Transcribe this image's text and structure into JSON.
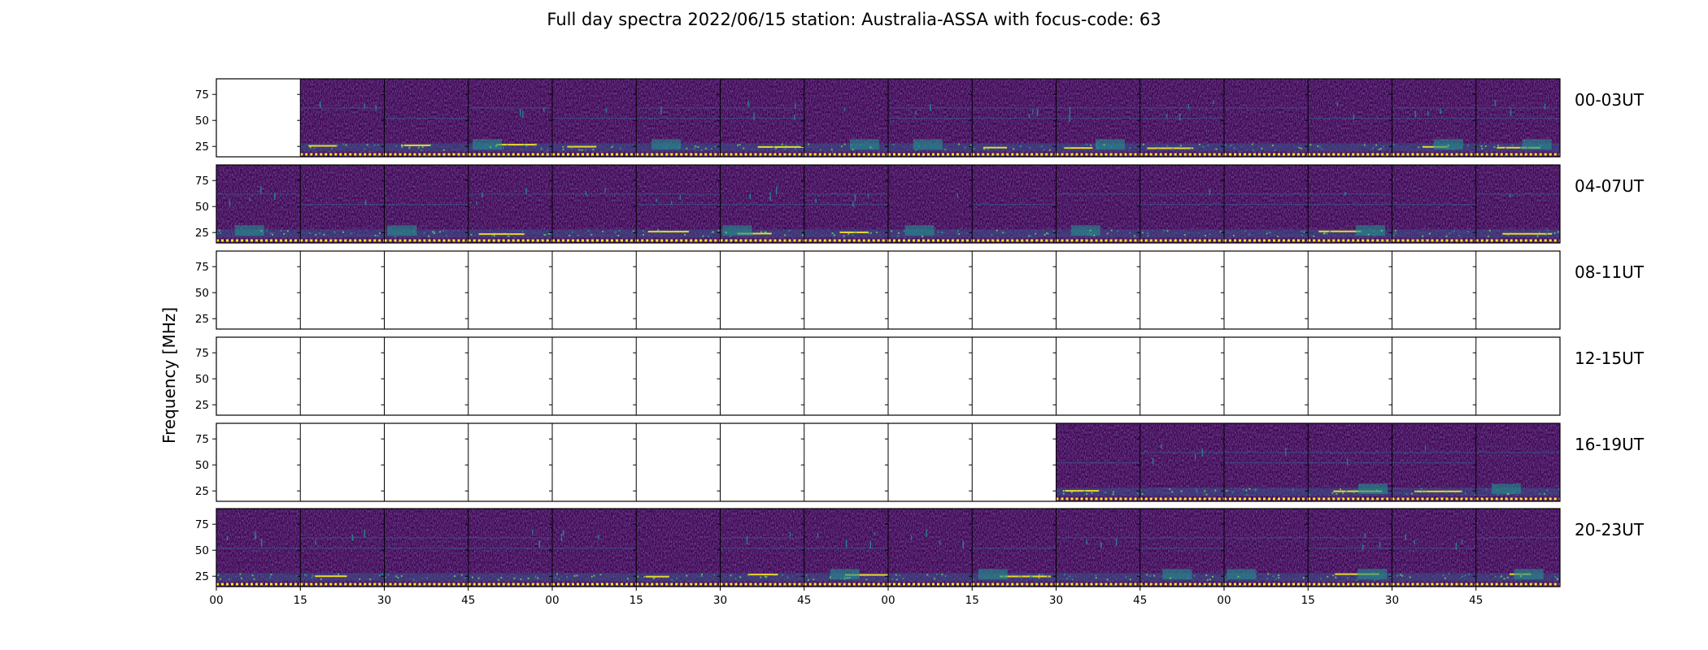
{
  "chart_data": {
    "type": "heatmap",
    "title": "Full day spectra 2022/06/15 station: Australia-ASSA with focus-code: 63",
    "ylabel": "Frequency [MHz]",
    "xlabel": "",
    "y_ticks": [
      25,
      50,
      75
    ],
    "ylim": [
      15,
      90
    ],
    "x_tick_labels": [
      "00",
      "15",
      "30",
      "45",
      "00",
      "15",
      "30",
      "45",
      "00",
      "15",
      "30",
      "45",
      "00",
      "15",
      "30",
      "45"
    ],
    "panels_per_row": 16,
    "colormap": "viridis",
    "row_labels": [
      "00-03UT",
      "04-07UT",
      "08-11UT",
      "12-15UT",
      "16-19UT",
      "20-23UT"
    ],
    "rows": [
      {
        "label": "00-03UT",
        "has_data": [
          0,
          1,
          1,
          1,
          1,
          1,
          1,
          1,
          1,
          1,
          1,
          1,
          1,
          1,
          1,
          1
        ]
      },
      {
        "label": "04-07UT",
        "has_data": [
          1,
          1,
          1,
          1,
          1,
          1,
          1,
          1,
          1,
          1,
          1,
          1,
          1,
          1,
          1,
          1
        ]
      },
      {
        "label": "08-11UT",
        "has_data": [
          0,
          0,
          0,
          0,
          0,
          0,
          0,
          0,
          0,
          0,
          0,
          0,
          0,
          0,
          0,
          0
        ]
      },
      {
        "label": "12-15UT",
        "has_data": [
          0,
          0,
          0,
          0,
          0,
          0,
          0,
          0,
          0,
          0,
          0,
          0,
          0,
          0,
          0,
          0
        ]
      },
      {
        "label": "16-19UT",
        "has_data": [
          0,
          0,
          0,
          0,
          0,
          0,
          0,
          0,
          0,
          0,
          1,
          1,
          1,
          1,
          1,
          1
        ]
      },
      {
        "label": "20-23UT",
        "has_data": [
          1,
          1,
          1,
          1,
          1,
          1,
          1,
          1,
          1,
          1,
          1,
          1,
          1,
          1,
          1,
          1
        ]
      }
    ],
    "colors": {
      "background": "#440154",
      "mid": "#3b528b",
      "teal": "#21918c",
      "green": "#5ec962",
      "yellow": "#fde725"
    }
  }
}
